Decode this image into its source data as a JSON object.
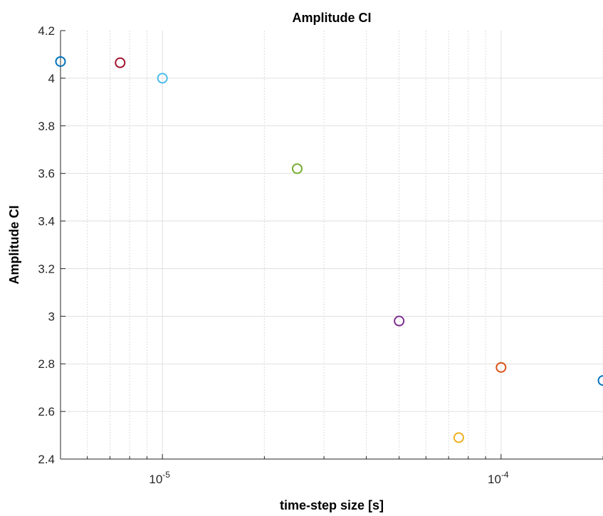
{
  "chart_data": {
    "type": "scatter",
    "title": "Amplitude CI",
    "xlabel": "time-step size [s]",
    "ylabel": "Amplitude CI",
    "xscale": "log",
    "xlim": [
      5e-06,
      0.0002
    ],
    "ylim": [
      2.4,
      4.2
    ],
    "grid": true,
    "minor_grid_x": true,
    "marker": "open-circle",
    "y_ticks": [
      "2.4",
      "2.6",
      "2.8",
      "3",
      "3.2",
      "3.4",
      "3.6",
      "3.8",
      "4",
      "4.2"
    ],
    "x_ticks": [
      {
        "value": 1e-05,
        "base": "10",
        "exponent": "-5"
      },
      {
        "value": 0.0001,
        "base": "10",
        "exponent": "-4"
      }
    ],
    "points": [
      {
        "x": 5e-06,
        "y": 4.07,
        "color": "#0072BD"
      },
      {
        "x": 7.5e-06,
        "y": 4.065,
        "color": "#A2142F"
      },
      {
        "x": 1e-05,
        "y": 4.0,
        "color": "#4DBEEE"
      },
      {
        "x": 2.5e-05,
        "y": 3.62,
        "color": "#77AC30"
      },
      {
        "x": 5e-05,
        "y": 2.98,
        "color": "#7E2F8E"
      },
      {
        "x": 7.5e-05,
        "y": 2.49,
        "color": "#EDB120"
      },
      {
        "x": 0.0001,
        "y": 2.785,
        "color": "#D95319"
      },
      {
        "x": 0.0002,
        "y": 2.73,
        "color": "#0072BD"
      }
    ]
  }
}
